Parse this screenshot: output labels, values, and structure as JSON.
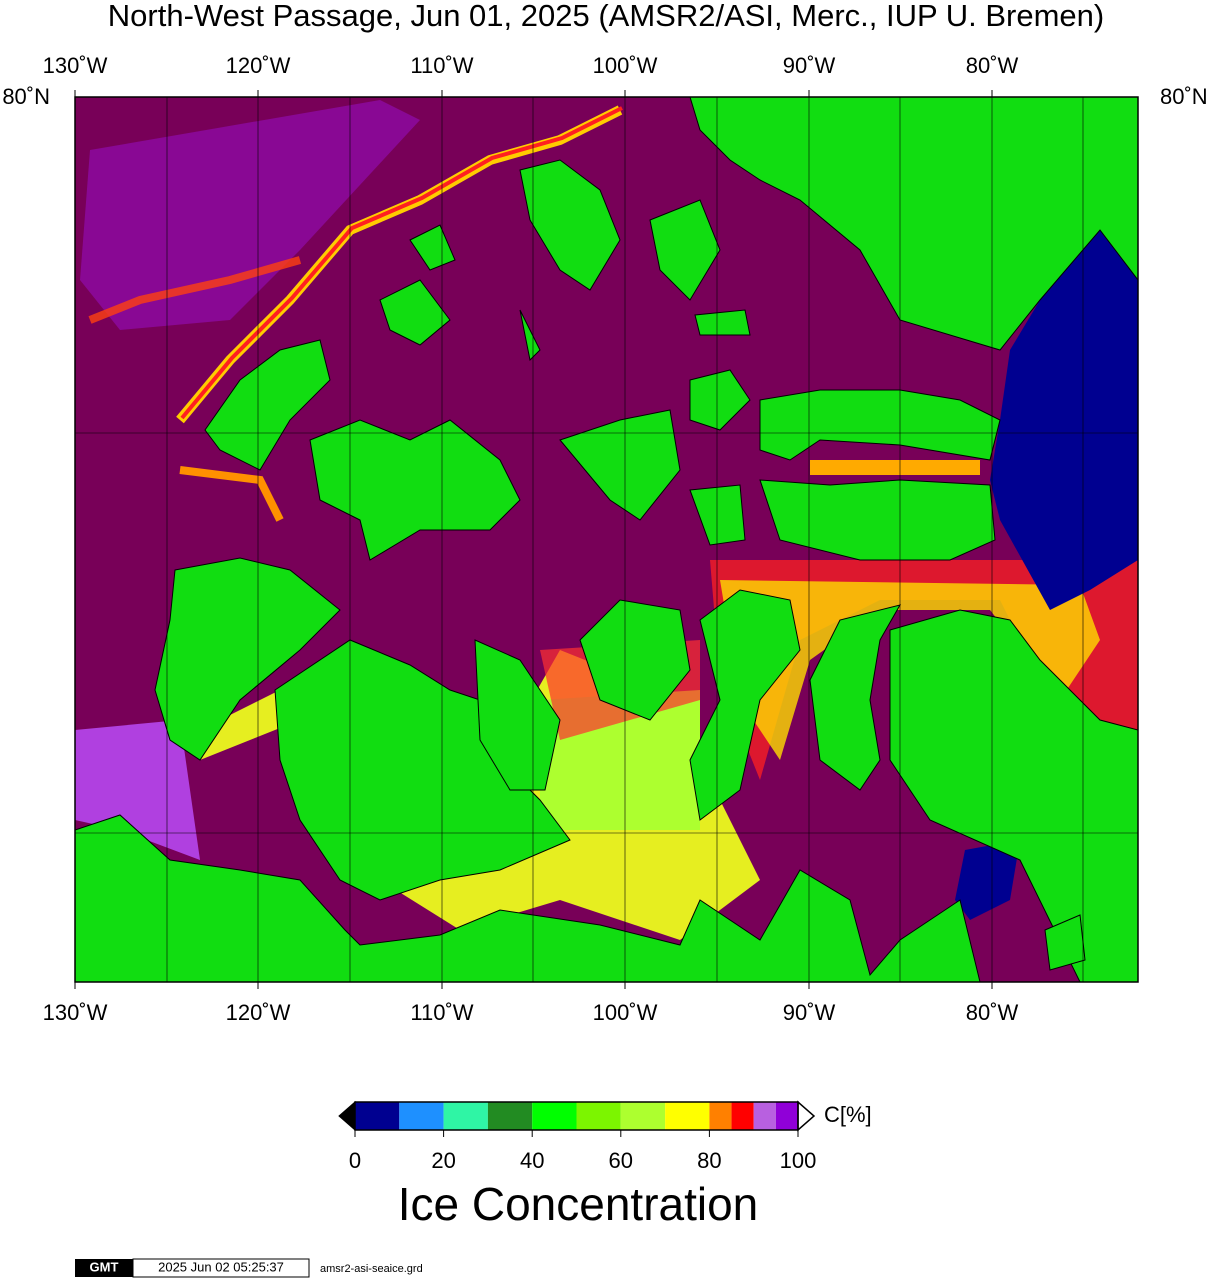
{
  "title": "North-West Passage, Jun 01, 2025 (AMSR2/ASI, Merc., IUP U. Bremen)",
  "map": {
    "lon_labels_top": [
      "130˚W",
      "120˚W",
      "110˚W",
      "100˚W",
      "90˚W",
      "80˚W"
    ],
    "lon_labels_bottom": [
      "130˚W",
      "120˚W",
      "110˚W",
      "100˚W",
      "90˚W",
      "80˚W"
    ],
    "lat_label_left": "80˚N",
    "lat_label_right": "80˚N"
  },
  "colorbar": {
    "title": "Ice Concentration",
    "unit": "C[%]",
    "range": [
      0,
      100
    ],
    "ticks": [
      0,
      20,
      40,
      60,
      80,
      100
    ],
    "bounds": [
      0,
      10,
      20,
      30,
      40,
      50,
      60,
      70,
      80,
      85,
      90,
      95,
      100
    ],
    "colors": [
      "#000090",
      "#1e90ff",
      "#2ff5a5",
      "#228b22",
      "#00ff00",
      "#7cf500",
      "#adff2f",
      "#ffff00",
      "#ff8000",
      "#ff0000",
      "#b860e0",
      "#9000d8"
    ],
    "under_color": "#000000",
    "over_color": "#ffffff"
  },
  "footer": {
    "logo": "GMT",
    "timestamp": "2025 Jun 02 05:25:37",
    "file": "amsr2-asi-seaice.grd"
  }
}
